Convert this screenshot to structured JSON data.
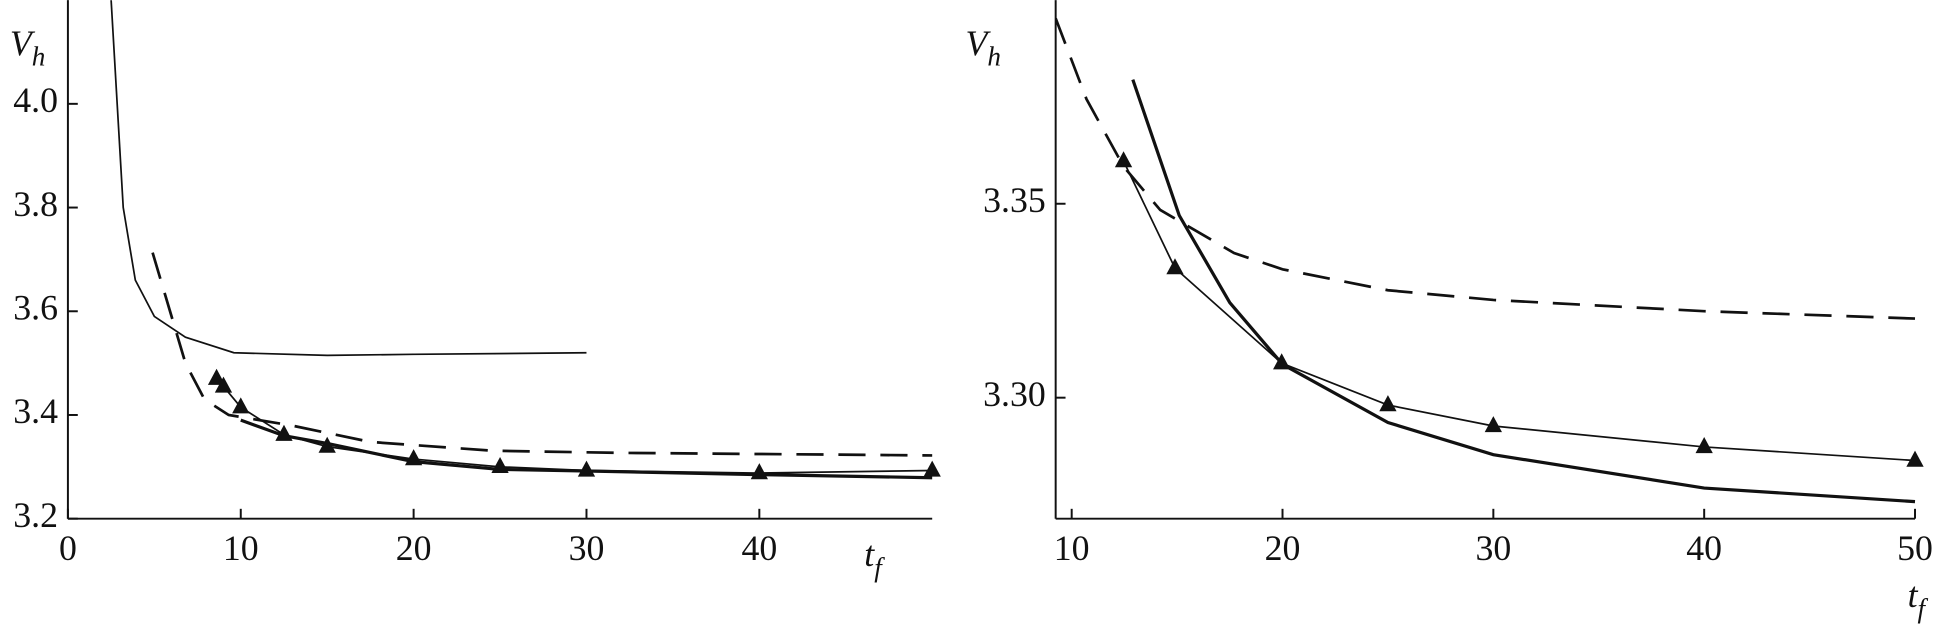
{
  "chart_data": [
    {
      "type": "line",
      "xlabel": [
        "t",
        "f"
      ],
      "ylabel": [
        "V",
        "h"
      ],
      "xlim": [
        0,
        50
      ],
      "ylim": [
        3.2,
        4.2
      ],
      "xticks": [
        0,
        10,
        20,
        30,
        40
      ],
      "yticks": [
        3.2,
        3.4,
        3.6,
        3.8,
        {
          "value": 4,
          "label": "4.0"
        }
      ],
      "series": [
        {
          "color": "#111",
          "style": "thin",
          "x": [
            2.5,
            3.2,
            3.9,
            5,
            6.8,
            9.6,
            15,
            20,
            30
          ],
          "values": [
            4.2,
            3.8,
            3.66,
            3.59,
            3.55,
            3.52,
            3.515,
            3.517,
            3.52
          ]
        },
        {
          "color": "#111",
          "style": "dashed",
          "x": [
            4.9,
            6.8,
            7.9,
            9.3,
            12.9,
            17.5,
            24.6,
            31.8,
            50
          ],
          "values": [
            3.713,
            3.5,
            3.43,
            3.4,
            3.38,
            3.348,
            3.331,
            3.327,
            3.322
          ]
        },
        {
          "color": "#111",
          "style": "thick",
          "x": [
            10,
            12.5,
            15,
            20,
            25,
            30,
            40,
            50
          ],
          "values": [
            3.39,
            3.36,
            3.345,
            3.31,
            3.295,
            3.292,
            3.285,
            3.279
          ]
        },
        {
          "color": "#111",
          "style": "thin",
          "marker": "triangle",
          "x": [
            8.6,
            9,
            10,
            12.5,
            15,
            20,
            25,
            30,
            40,
            50
          ],
          "values": [
            3.47,
            3.455,
            3.415,
            3.362,
            3.339,
            3.315,
            3.3,
            3.293,
            3.288,
            3.293
          ]
        }
      ]
    },
    {
      "type": "line",
      "xlabel": [
        "t",
        "f"
      ],
      "ylabel": [
        "V",
        "h"
      ],
      "xlim": [
        9.24,
        50
      ],
      "ylim": [
        3.2688,
        3.4025
      ],
      "xticks": [
        10,
        20,
        30,
        40,
        50
      ],
      "yticks": [
        {
          "value": 3.3,
          "label": "3.30"
        },
        3.35
      ],
      "series": [
        {
          "color": "#111",
          "style": "thin",
          "marker": "triangle",
          "x": [
            12.46,
            14.9,
            19.96,
            25,
            30,
            40,
            50
          ],
          "values": [
            3.361,
            3.3334,
            3.3089,
            3.2981,
            3.2927,
            3.2873,
            3.2838
          ]
        },
        {
          "color": "#111",
          "style": "thick",
          "x": [
            12.9,
            15.1,
            17.5,
            20,
            25,
            30,
            40,
            50
          ],
          "values": [
            3.382,
            3.347,
            3.3245,
            3.3086,
            3.2936,
            3.2853,
            3.2767,
            3.2732
          ]
        },
        {
          "color": "#111",
          "style": "dashed",
          "x": [
            9.24,
            10.7,
            12.46,
            14.2,
            17.7,
            20,
            25,
            30,
            40,
            50
          ],
          "values": [
            3.3978,
            3.377,
            3.3596,
            3.3484,
            3.3373,
            3.3331,
            3.3277,
            3.3252,
            3.3223,
            3.3204
          ]
        }
      ]
    }
  ]
}
